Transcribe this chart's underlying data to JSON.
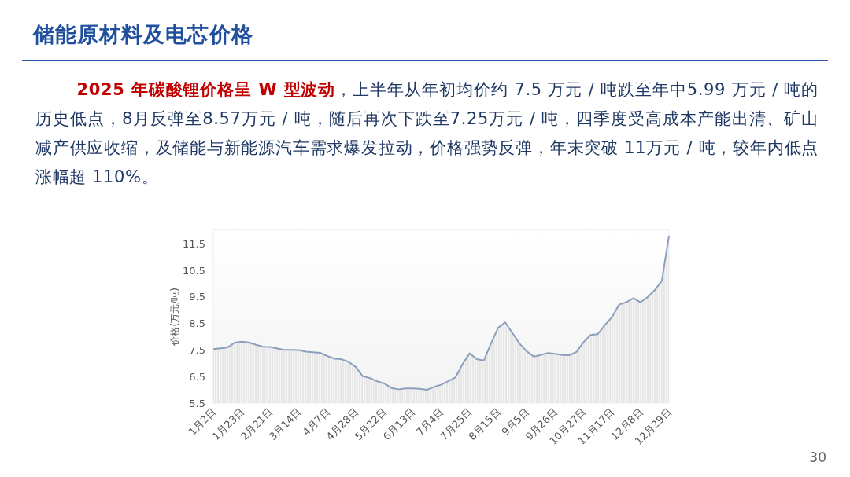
{
  "chart_data": {
    "type": "area",
    "title": "储能原材料及电芯价格",
    "annotations": [
      "2025 年碳酸锂价格呈 W 型波动",
      "，上半年从年初均价约 7.5 万元 / 吨跌至年中5.99 万元 / 吨的历史低点，8月反弹至8.57万元 / 吨，随后再次下跌至7.25万元 / 吨，四季度受高成本产能出清、矿山减产供应收缩，及储能与新能源汽车需求爆发拉动，价格强势反弹，年末突破 11万元 / 吨，较年内低点涨幅超 110%。",
      "30"
    ],
    "ylabel": "价格(万元/吨)",
    "categories": [
      "1月2日",
      null,
      null,
      null,
      "1月23日",
      null,
      null,
      null,
      "2月21日",
      null,
      null,
      null,
      "3月14日",
      null,
      null,
      null,
      "4月7日",
      null,
      null,
      null,
      "4月28日",
      null,
      null,
      null,
      "5月22日",
      null,
      null,
      null,
      "6月13日",
      null,
      null,
      null,
      "7月4日",
      null,
      null,
      null,
      "7月25日",
      null,
      null,
      null,
      "8月15日",
      null,
      null,
      null,
      "9月5日",
      null,
      null,
      null,
      "9月26日",
      null,
      null,
      null,
      "10月27日",
      null,
      null,
      null,
      "11月17日",
      null,
      null,
      null,
      "12月8日",
      null,
      null,
      null,
      "12月29日"
    ],
    "series": [
      {
        "color": "#8c9fbd",
        "values": [
          7.53,
          7.56,
          7.59,
          7.77,
          7.81,
          7.78,
          7.69,
          7.62,
          7.61,
          7.55,
          7.5,
          7.5,
          7.49,
          7.43,
          7.41,
          7.39,
          7.27,
          7.17,
          7.15,
          7.05,
          6.86,
          6.51,
          6.44,
          6.32,
          6.24,
          6.07,
          6.02,
          6.05,
          6.05,
          6.04,
          6.0,
          6.11,
          6.19,
          6.32,
          6.46,
          6.96,
          7.37,
          7.15,
          7.1,
          7.74,
          8.33,
          8.53,
          8.14,
          7.74,
          7.45,
          7.25,
          7.31,
          7.38,
          7.35,
          7.31,
          7.3,
          7.42,
          7.79,
          8.06,
          8.09,
          8.43,
          8.73,
          9.2,
          9.29,
          9.44,
          9.29,
          9.48,
          9.74,
          10.1,
          11.79
        ]
      }
    ],
    "ylim": [
      5.5,
      12
    ],
    "yticks": [
      5.5,
      6.5,
      7.5,
      8.5,
      9.5,
      10.5,
      11.5
    ],
    "grid": false
  }
}
